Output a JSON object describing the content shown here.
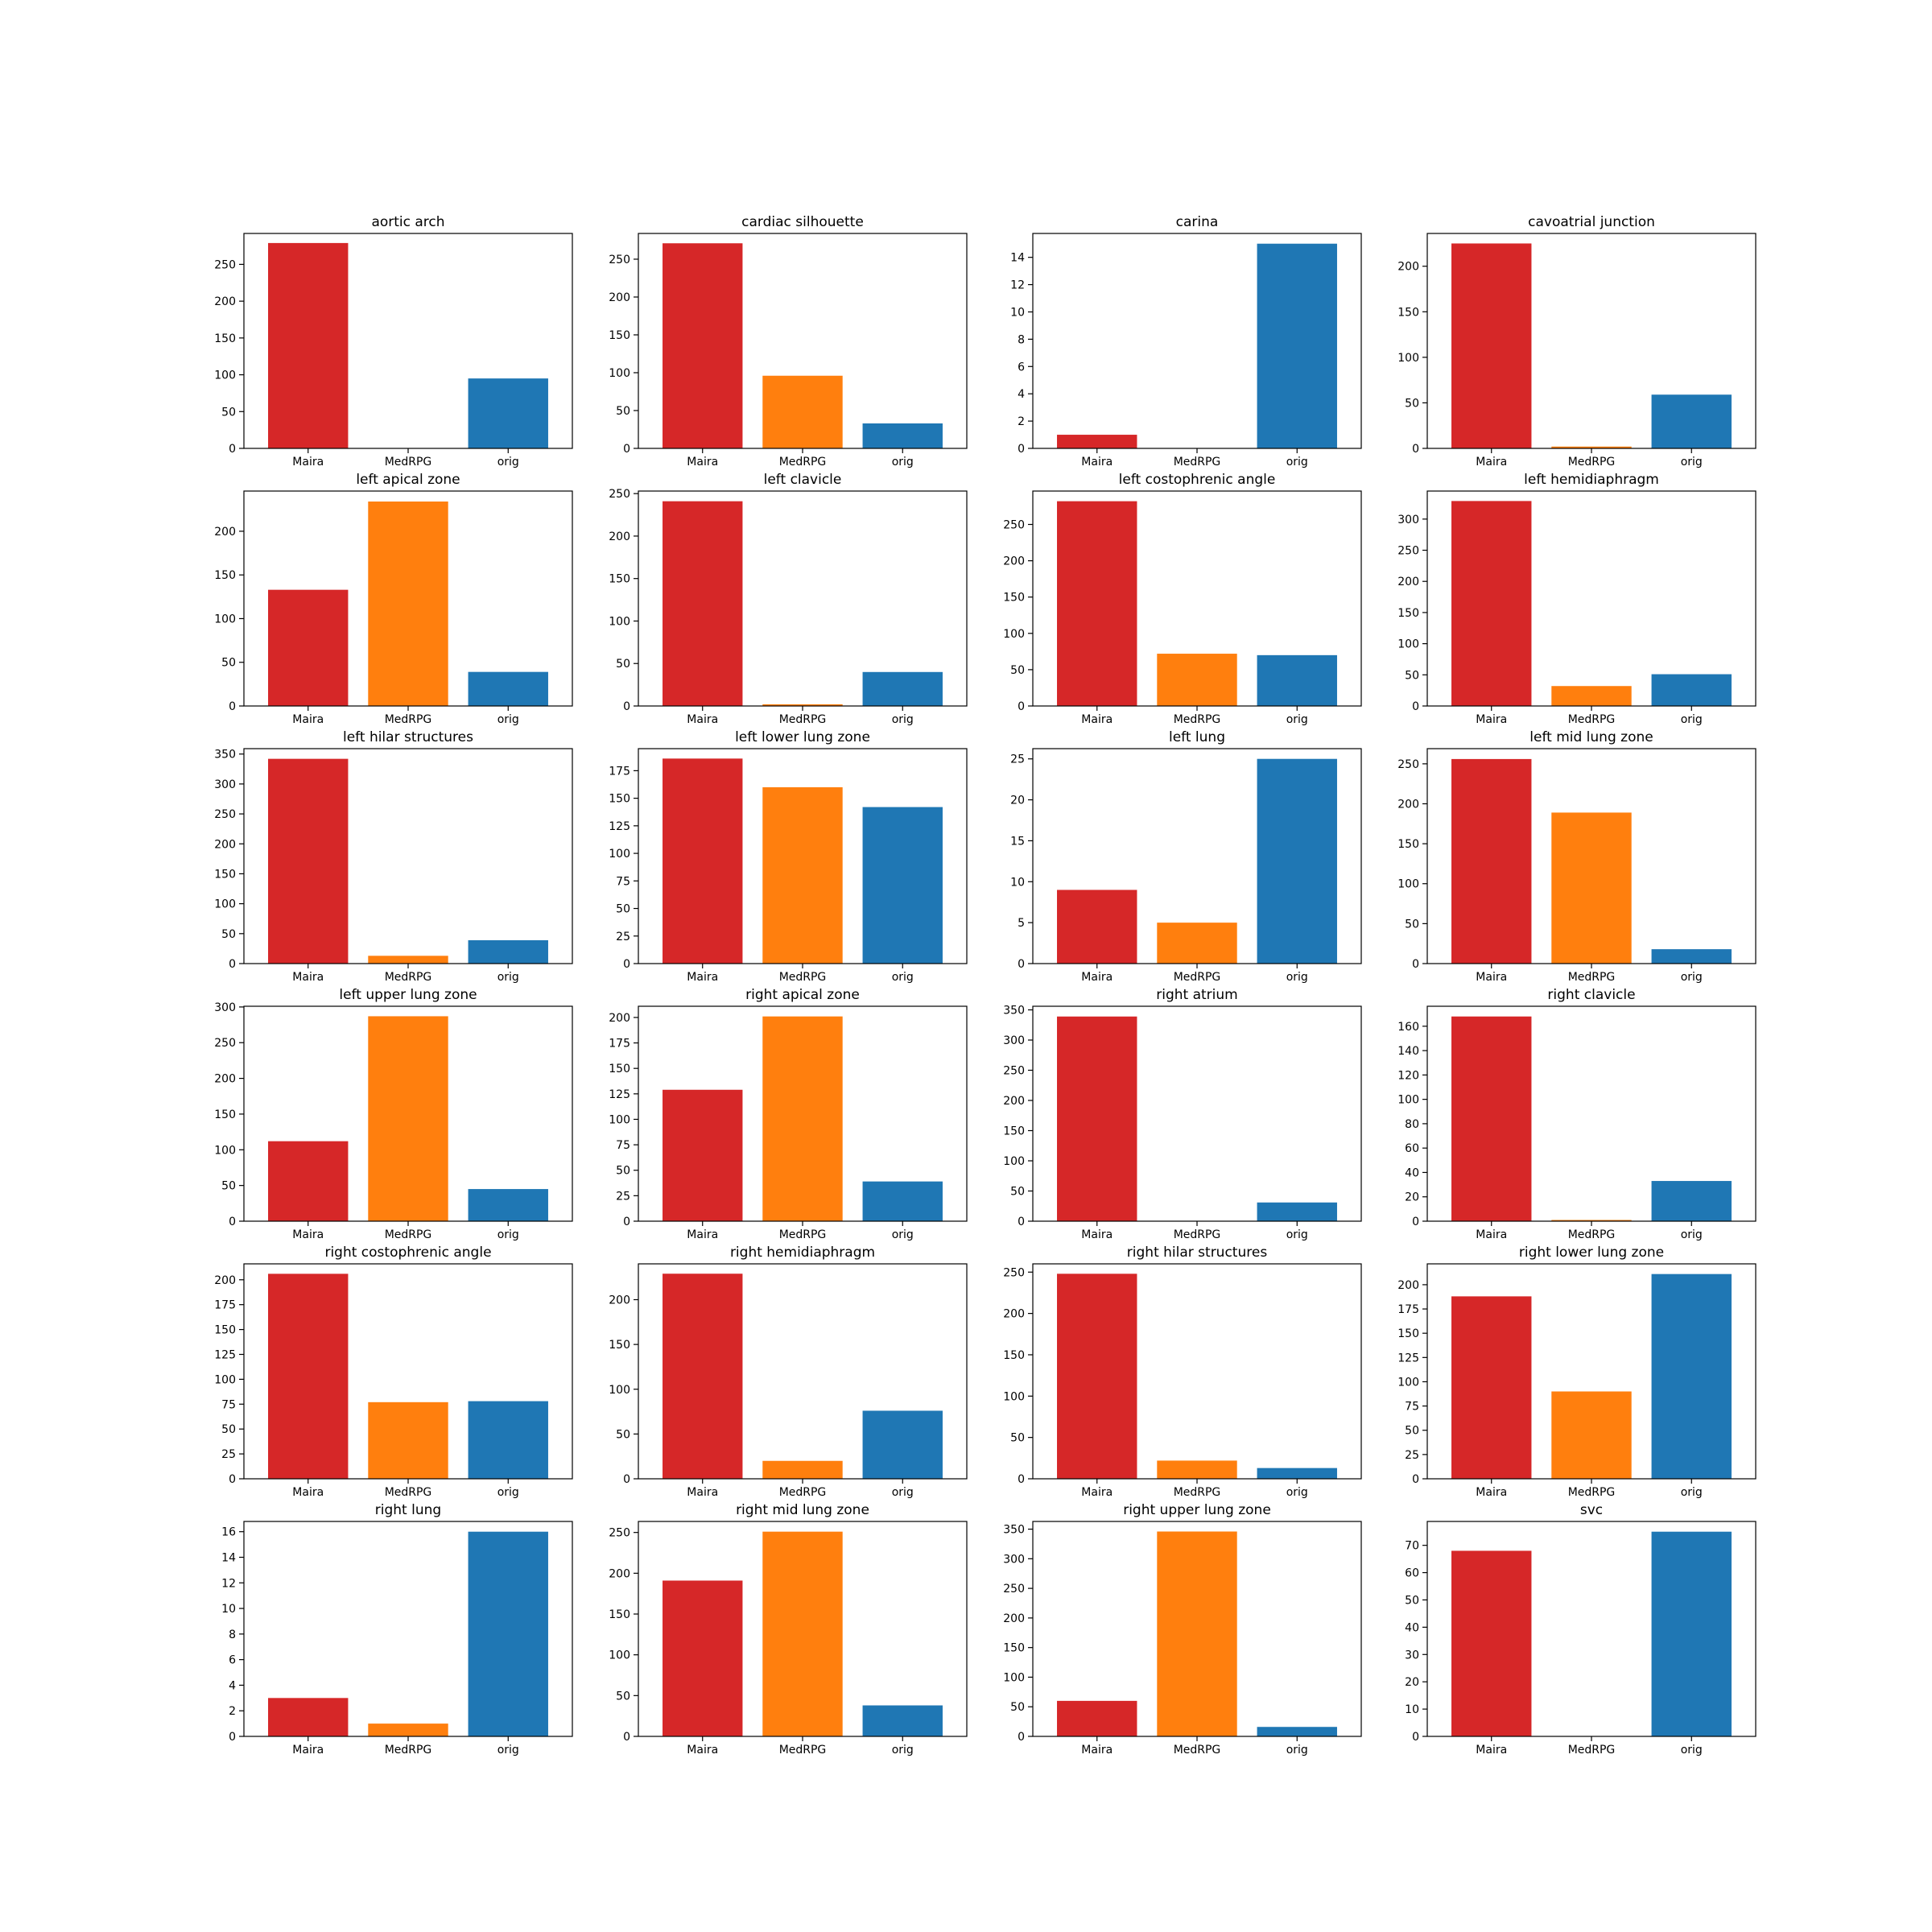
{
  "colors": {
    "Maira": "#d62728",
    "MedRPG": "#ff7f0e",
    "orig": "#1f77b4"
  },
  "chart_data": [
    {
      "type": "bar",
      "title": "aortic arch",
      "categories": [
        "Maira",
        "MedRPG",
        "orig"
      ],
      "values": [
        279,
        0,
        95
      ],
      "ylim": [
        0,
        292
      ],
      "yticks": [
        0,
        50,
        100,
        150,
        200,
        250
      ]
    },
    {
      "type": "bar",
      "title": "cardiac silhouette",
      "categories": [
        "Maira",
        "MedRPG",
        "orig"
      ],
      "values": [
        271,
        96,
        33
      ],
      "ylim": [
        0,
        284
      ],
      "yticks": [
        0,
        50,
        100,
        150,
        200,
        250
      ]
    },
    {
      "type": "bar",
      "title": "carina",
      "categories": [
        "Maira",
        "MedRPG",
        "orig"
      ],
      "values": [
        1,
        0,
        15
      ],
      "ylim": [
        0,
        15.75
      ],
      "yticks": [
        0,
        2,
        4,
        6,
        8,
        10,
        12,
        14
      ]
    },
    {
      "type": "bar",
      "title": "cavoatrial junction",
      "categories": [
        "Maira",
        "MedRPG",
        "orig"
      ],
      "values": [
        225,
        2,
        59
      ],
      "ylim": [
        0,
        236
      ],
      "yticks": [
        0,
        50,
        100,
        150,
        200
      ]
    },
    {
      "type": "bar",
      "title": "left apical zone",
      "categories": [
        "Maira",
        "MedRPG",
        "orig"
      ],
      "values": [
        133,
        234,
        39
      ],
      "ylim": [
        0,
        246
      ],
      "yticks": [
        0,
        50,
        100,
        150,
        200
      ]
    },
    {
      "type": "bar",
      "title": "left clavicle",
      "categories": [
        "Maira",
        "MedRPG",
        "orig"
      ],
      "values": [
        241,
        2,
        40
      ],
      "ylim": [
        0,
        253
      ],
      "yticks": [
        0,
        50,
        100,
        150,
        200,
        250
      ]
    },
    {
      "type": "bar",
      "title": "left costophrenic angle",
      "categories": [
        "Maira",
        "MedRPG",
        "orig"
      ],
      "values": [
        282,
        72,
        70
      ],
      "ylim": [
        0,
        296
      ],
      "yticks": [
        0,
        50,
        100,
        150,
        200,
        250
      ]
    },
    {
      "type": "bar",
      "title": "left hemidiaphragm",
      "categories": [
        "Maira",
        "MedRPG",
        "orig"
      ],
      "values": [
        329,
        32,
        51
      ],
      "ylim": [
        0,
        345
      ],
      "yticks": [
        0,
        50,
        100,
        150,
        200,
        250,
        300
      ]
    },
    {
      "type": "bar",
      "title": "left hilar structures",
      "categories": [
        "Maira",
        "MedRPG",
        "orig"
      ],
      "values": [
        342,
        13,
        39
      ],
      "ylim": [
        0,
        359
      ],
      "yticks": [
        0,
        50,
        100,
        150,
        200,
        250,
        300,
        350
      ]
    },
    {
      "type": "bar",
      "title": "left lower lung zone",
      "categories": [
        "Maira",
        "MedRPG",
        "orig"
      ],
      "values": [
        186,
        160,
        142
      ],
      "ylim": [
        0,
        195
      ],
      "yticks": [
        0,
        25,
        50,
        75,
        100,
        125,
        150,
        175
      ]
    },
    {
      "type": "bar",
      "title": "left lung",
      "categories": [
        "Maira",
        "MedRPG",
        "orig"
      ],
      "values": [
        9,
        5,
        25
      ],
      "ylim": [
        0,
        26.25
      ],
      "yticks": [
        0,
        5,
        10,
        15,
        20,
        25
      ]
    },
    {
      "type": "bar",
      "title": "left mid lung zone",
      "categories": [
        "Maira",
        "MedRPG",
        "orig"
      ],
      "values": [
        256,
        189,
        18
      ],
      "ylim": [
        0,
        269
      ],
      "yticks": [
        0,
        50,
        100,
        150,
        200,
        250
      ]
    },
    {
      "type": "bar",
      "title": "left upper lung zone",
      "categories": [
        "Maira",
        "MedRPG",
        "orig"
      ],
      "values": [
        112,
        287,
        45
      ],
      "ylim": [
        0,
        301
      ],
      "yticks": [
        0,
        50,
        100,
        150,
        200,
        250,
        300
      ]
    },
    {
      "type": "bar",
      "title": "right apical zone",
      "categories": [
        "Maira",
        "MedRPG",
        "orig"
      ],
      "values": [
        129,
        201,
        39
      ],
      "ylim": [
        0,
        211
      ],
      "yticks": [
        0,
        25,
        50,
        75,
        100,
        125,
        150,
        175,
        200
      ]
    },
    {
      "type": "bar",
      "title": "right atrium",
      "categories": [
        "Maira",
        "MedRPG",
        "orig"
      ],
      "values": [
        339,
        0,
        31
      ],
      "ylim": [
        0,
        356
      ],
      "yticks": [
        0,
        50,
        100,
        150,
        200,
        250,
        300,
        350
      ]
    },
    {
      "type": "bar",
      "title": "right clavicle",
      "categories": [
        "Maira",
        "MedRPG",
        "orig"
      ],
      "values": [
        168,
        1,
        33
      ],
      "ylim": [
        0,
        176.4
      ],
      "yticks": [
        0,
        20,
        40,
        60,
        80,
        100,
        120,
        140,
        160
      ]
    },
    {
      "type": "bar",
      "title": "right costophrenic angle",
      "categories": [
        "Maira",
        "MedRPG",
        "orig"
      ],
      "values": [
        206,
        77,
        78
      ],
      "ylim": [
        0,
        216
      ],
      "yticks": [
        0,
        25,
        50,
        75,
        100,
        125,
        150,
        175,
        200
      ]
    },
    {
      "type": "bar",
      "title": "right hemidiaphragm",
      "categories": [
        "Maira",
        "MedRPG",
        "orig"
      ],
      "values": [
        229,
        20,
        76
      ],
      "ylim": [
        0,
        240
      ],
      "yticks": [
        0,
        50,
        100,
        150,
        200
      ]
    },
    {
      "type": "bar",
      "title": "right hilar structures",
      "categories": [
        "Maira",
        "MedRPG",
        "orig"
      ],
      "values": [
        248,
        22,
        13
      ],
      "ylim": [
        0,
        260
      ],
      "yticks": [
        0,
        50,
        100,
        150,
        200,
        250
      ]
    },
    {
      "type": "bar",
      "title": "right lower lung zone",
      "categories": [
        "Maira",
        "MedRPG",
        "orig"
      ],
      "values": [
        188,
        90,
        211
      ],
      "ylim": [
        0,
        221.5
      ],
      "yticks": [
        0,
        25,
        50,
        75,
        100,
        125,
        150,
        175,
        200
      ]
    },
    {
      "type": "bar",
      "title": "right lung",
      "categories": [
        "Maira",
        "MedRPG",
        "orig"
      ],
      "values": [
        3,
        1,
        16
      ],
      "ylim": [
        0,
        16.8
      ],
      "yticks": [
        0,
        2,
        4,
        6,
        8,
        10,
        12,
        14,
        16
      ]
    },
    {
      "type": "bar",
      "title": "right mid lung zone",
      "categories": [
        "Maira",
        "MedRPG",
        "orig"
      ],
      "values": [
        191,
        251,
        38
      ],
      "ylim": [
        0,
        263.5
      ],
      "yticks": [
        0,
        50,
        100,
        150,
        200,
        250
      ]
    },
    {
      "type": "bar",
      "title": "right upper lung zone",
      "categories": [
        "Maira",
        "MedRPG",
        "orig"
      ],
      "values": [
        60,
        346,
        16
      ],
      "ylim": [
        0,
        363
      ],
      "yticks": [
        0,
        50,
        100,
        150,
        200,
        250,
        300,
        350
      ]
    },
    {
      "type": "bar",
      "title": "svc",
      "categories": [
        "Maira",
        "MedRPG",
        "orig"
      ],
      "values": [
        68,
        0,
        75
      ],
      "ylim": [
        0,
        78.75
      ],
      "yticks": [
        0,
        10,
        20,
        30,
        40,
        50,
        60,
        70
      ]
    }
  ]
}
